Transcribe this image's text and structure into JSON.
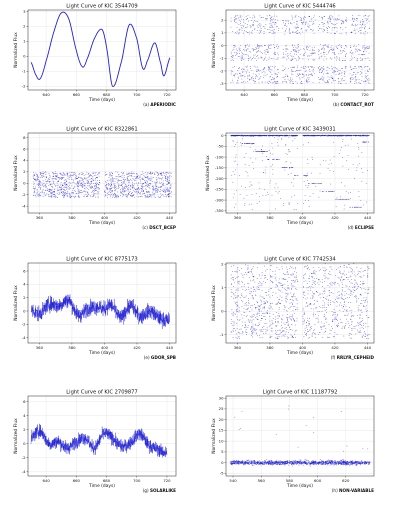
{
  "figure": {
    "style": {
      "series_color": "#1f1fd6",
      "grid": true,
      "axis_color": "#222222",
      "grid_color": "#e2e2e2"
    }
  },
  "chart_data": [
    {
      "type": "line",
      "title": "Light Curve of KIC 3544709",
      "xlabel": "Time (days)",
      "ylabel": "Normalized Flux",
      "caption_prefix": "(a)",
      "caption_class": "APERIODIC",
      "xlim": [
        628,
        726
      ],
      "ylim": [
        -2.25,
        3.1
      ],
      "xticks": [
        640,
        660,
        680,
        700,
        720
      ],
      "yticks": [
        -2,
        -1,
        0,
        1,
        2,
        3
      ],
      "series": [
        {
          "x": [
            630,
            633,
            636,
            640,
            645,
            650,
            655,
            660,
            664,
            667,
            672,
            677,
            680,
            684,
            690,
            695,
            700,
            704,
            707,
            712,
            716,
            718,
            722
          ],
          "values": [
            -0.4,
            -1.2,
            -1.5,
            -0.3,
            1.6,
            2.9,
            2.5,
            0.4,
            -0.7,
            -0.2,
            1.2,
            1.8,
            0.6,
            -2.0,
            -0.3,
            2.1,
            1.2,
            -0.8,
            -0.3,
            0.9,
            -0.5,
            -1.3,
            -0.1
          ]
        }
      ]
    },
    {
      "type": "scatter",
      "title": "Light Curve of KIC 5444746",
      "xlabel": "Time (days)",
      "ylabel": "Normalized Flux",
      "caption_prefix": "(b)",
      "caption_class": "CONTACT_ROT",
      "xlim": [
        628,
        726
      ],
      "ylim": [
        -3.5,
        2.8
      ],
      "xticks": [
        640,
        660,
        680,
        700,
        720
      ],
      "yticks": [
        -3,
        -2,
        -1,
        0,
        1,
        2
      ],
      "gaps": [
        [
          663,
          665
        ],
        [
          687,
          689
        ],
        [
          708,
          710
        ]
      ],
      "bands": [
        [
          -3.0,
          -1.6
        ],
        [
          -1.2,
          0.1
        ],
        [
          0.9,
          2.4
        ]
      ]
    },
    {
      "type": "scatter",
      "title": "Light Curve of KIC 8322861",
      "xlabel": "Time (days)",
      "ylabel": "Normalized Flux",
      "caption_prefix": "(c)",
      "caption_class": "DSCT_BCEP",
      "xlim": [
        353,
        444
      ],
      "ylim": [
        -5.2,
        8.8
      ],
      "xticks": [
        360,
        380,
        400,
        420,
        440
      ],
      "yticks": [
        -4,
        -2,
        0,
        2,
        4,
        6,
        8
      ],
      "gaps": [
        [
          397,
          400
        ]
      ],
      "bands": [
        [
          -2.5,
          2.0
        ]
      ]
    },
    {
      "type": "scatter",
      "title": "Light Curve of KIC 3439031",
      "xlabel": "Time (days)",
      "ylabel": "Normalized Flux",
      "caption_prefix": "(d)",
      "caption_class": "ECLIPSE",
      "xlim": [
        353,
        444
      ],
      "ylim": [
        -360,
        12
      ],
      "xticks": [
        360,
        380,
        400,
        420,
        440
      ],
      "yticks": [
        -350,
        -300,
        -250,
        -200,
        -150,
        -100,
        -50,
        0
      ],
      "gaps": [
        [
          397,
          400
        ]
      ],
      "bands": [
        [
          -4,
          4
        ]
      ]
    },
    {
      "type": "line",
      "title": "Light Curve of KIC 8775173",
      "xlabel": "Time (days)",
      "ylabel": "Normalized Flux",
      "caption_prefix": "(e)",
      "caption_class": "GDOR_SPB",
      "xlim": [
        353,
        444
      ],
      "ylim": [
        -4.8,
        7.2
      ],
      "xticks": [
        360,
        380,
        400,
        420,
        440
      ],
      "yticks": [
        -4,
        -2,
        0,
        2,
        4,
        6
      ],
      "series": [
        {
          "x": [
            355,
            360,
            366,
            372,
            378,
            384,
            390,
            396,
            400,
            404,
            410,
            416,
            422,
            428,
            434,
            440
          ],
          "values": [
            0.2,
            -0.4,
            1.0,
            0.8,
            1.6,
            -0.6,
            0.4,
            0.6,
            0.3,
            0.9,
            -1.0,
            0.8,
            -0.8,
            0.0,
            -1.1,
            -1.4
          ]
        }
      ]
    },
    {
      "type": "scatter",
      "title": "Light Curve of KIC 7742534",
      "xlabel": "Time (days)",
      "ylabel": "Normalized Flux",
      "caption_prefix": "(f)",
      "caption_class": "RRLYR_CEPHEID",
      "xlim": [
        353,
        444
      ],
      "ylim": [
        -1.35,
        2.05
      ],
      "xticks": [
        360,
        380,
        400,
        420,
        440
      ],
      "yticks": [
        -1,
        0,
        1,
        2
      ],
      "gaps": [
        [
          382,
          383
        ],
        [
          397,
          400
        ]
      ],
      "bands": [
        [
          -1.2,
          1.9
        ]
      ]
    },
    {
      "type": "line",
      "title": "Light Curve of KIC 2709877",
      "xlabel": "Time (days)",
      "ylabel": "Normalized Flux",
      "caption_prefix": "(g)",
      "caption_class": "SOLARLIKE",
      "xlim": [
        628,
        726
      ],
      "ylim": [
        -4.6,
        6.8
      ],
      "xticks": [
        640,
        660,
        680,
        700,
        720
      ],
      "yticks": [
        -4,
        -2,
        0,
        2,
        4,
        6
      ],
      "series": [
        {
          "x": [
            630,
            636,
            642,
            648,
            654,
            660,
            666,
            672,
            678,
            684,
            690,
            696,
            702,
            708,
            714,
            720
          ],
          "values": [
            0.8,
            1.8,
            0.0,
            0.3,
            -0.6,
            0.3,
            0.8,
            -0.6,
            1.4,
            0.8,
            -0.4,
            0.2,
            1.4,
            -0.2,
            -0.8,
            -1.4
          ]
        }
      ]
    },
    {
      "type": "scatter",
      "title": "Light Curve of KIC 11187792",
      "xlabel": "Time (days)",
      "ylabel": "Normalized Flux",
      "caption_prefix": "(h)",
      "caption_class": "NON-VARIABLE",
      "xlim": [
        535,
        640
      ],
      "ylim": [
        -6.2,
        31
      ],
      "xticks": [
        540,
        560,
        580,
        600,
        620
      ],
      "yticks": [
        -5,
        0,
        5,
        10,
        15,
        20,
        25,
        30
      ],
      "gaps": [],
      "bands": [
        [
          -2.5,
          2.5
        ]
      ]
    }
  ]
}
